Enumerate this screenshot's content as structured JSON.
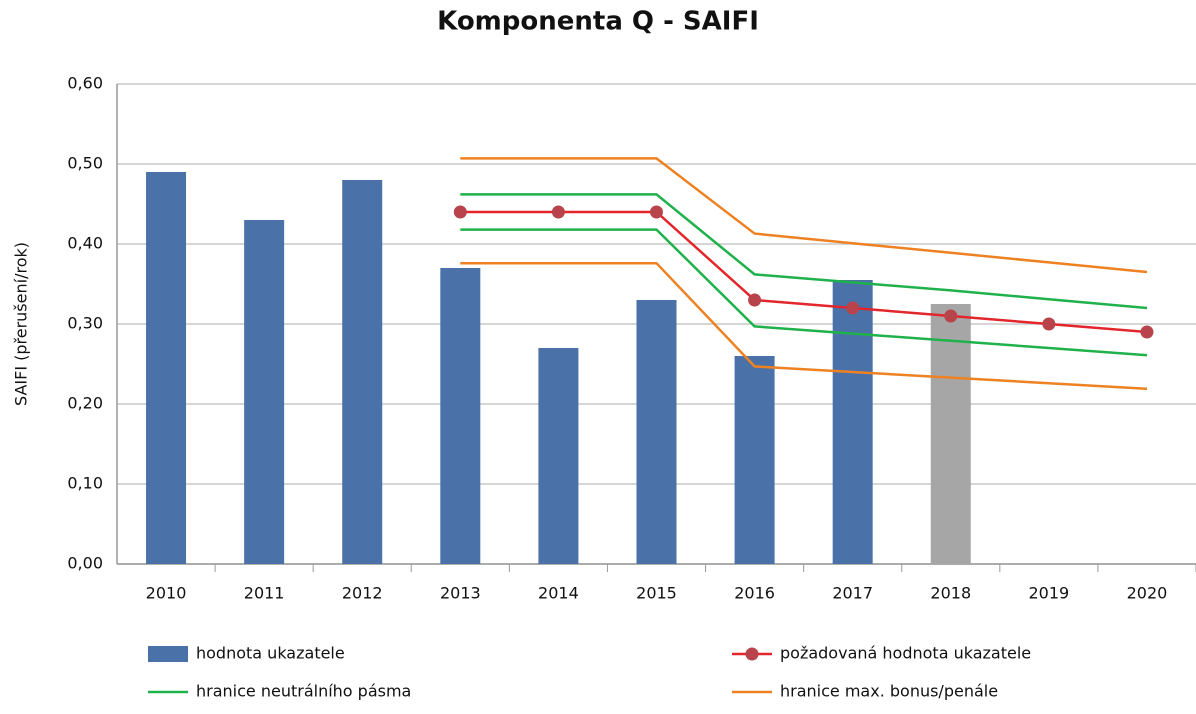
{
  "chart_data": {
    "type": "bar-line",
    "title": "Komponenta Q - SAIFI",
    "y_label": "SAIFI (přerušení/rok)",
    "categories": [
      "2010",
      "2011",
      "2012",
      "2013",
      "2014",
      "2015",
      "2016",
      "2017",
      "2018",
      "2019",
      "2020"
    ],
    "ylim": [
      0,
      0.6
    ],
    "yticks": [
      {
        "value": 0,
        "label": "0,00"
      },
      {
        "value": 0.1,
        "label": "0,10"
      },
      {
        "value": 0.2,
        "label": "0,20"
      },
      {
        "value": 0.3,
        "label": "0,30"
      },
      {
        "value": 0.4,
        "label": "0,40"
      },
      {
        "value": 0.5,
        "label": "0,50"
      },
      {
        "value": 0.6,
        "label": "0,60"
      }
    ],
    "grid": true,
    "bars": {
      "name": "hodnota ukazatele",
      "color": "#4a72a8",
      "values": [
        0.49,
        0.43,
        0.48,
        0.37,
        0.27,
        0.33,
        0.26,
        0.355,
        0.325,
        null,
        null
      ],
      "colors": [
        "#4a72a8",
        "#4a72a8",
        "#4a72a8",
        "#4a72a8",
        "#4a72a8",
        "#4a72a8",
        "#4a72a8",
        "#4a72a8",
        "#a6a6a6",
        "#4a72a8",
        "#4a72a8"
      ]
    },
    "series": [
      {
        "name": "požadovaná hodnota ukazatele",
        "color": "#e3262b",
        "marker_color": "#b8434b",
        "values": [
          null,
          null,
          null,
          0.44,
          0.44,
          0.44,
          0.33,
          0.32,
          0.31,
          0.3,
          0.29
        ]
      },
      {
        "name": "hranice neutrálního pásma",
        "color": "#1fb14a",
        "values": [
          null,
          null,
          null,
          0.462,
          0.462,
          0.462,
          0.362,
          0.352,
          0.342,
          0.331,
          0.32
        ],
        "lower": [
          null,
          null,
          null,
          0.418,
          0.418,
          0.418,
          0.297,
          0.288,
          0.279,
          0.27,
          0.261
        ]
      },
      {
        "name": "hranice max. bonus/penále",
        "color": "#ee8122",
        "values": [
          null,
          null,
          null,
          0.507,
          0.507,
          0.507,
          0.413,
          0.401,
          0.389,
          0.377,
          0.365
        ],
        "lower": [
          null,
          null,
          null,
          0.376,
          0.376,
          0.376,
          0.247,
          0.24,
          0.233,
          0.226,
          0.219
        ]
      }
    ]
  }
}
